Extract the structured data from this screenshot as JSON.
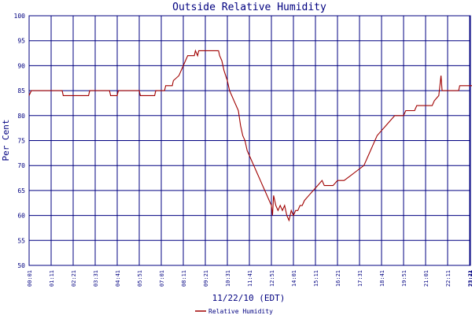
{
  "chart_data": {
    "type": "line",
    "title": "Outside Relative Humidity",
    "xlabel": "11/22/10 (EDT)",
    "ylabel": "Per Cent",
    "ylim": [
      50,
      100
    ],
    "yticks": [
      50,
      55,
      60,
      65,
      70,
      75,
      80,
      85,
      90,
      95,
      100
    ],
    "xticks": [
      "00:01",
      "01:11",
      "02:21",
      "03:31",
      "04:41",
      "05:51",
      "07:01",
      "08:11",
      "09:21",
      "10:31",
      "11:41",
      "12:51",
      "14:01",
      "15:11",
      "16:21",
      "17:31",
      "18:41",
      "19:51",
      "21:01",
      "22:11",
      "23:21",
      "23:44"
    ],
    "grid": true,
    "legend": "bottom-center",
    "colors": {
      "line": "#a00000",
      "grid": "#000080",
      "text": "#000080"
    },
    "series": [
      {
        "name": "Relative Humidity",
        "points": [
          [
            0,
            84
          ],
          [
            0.1,
            85
          ],
          [
            1.5,
            85
          ],
          [
            1.55,
            84
          ],
          [
            2.7,
            84
          ],
          [
            2.75,
            85
          ],
          [
            3.65,
            85
          ],
          [
            3.7,
            84
          ],
          [
            4.0,
            84
          ],
          [
            4.05,
            85
          ],
          [
            5.0,
            85
          ],
          [
            5.05,
            84
          ],
          [
            5.7,
            84
          ],
          [
            5.75,
            85
          ],
          [
            6.15,
            85
          ],
          [
            6.2,
            86
          ],
          [
            6.5,
            86
          ],
          [
            6.55,
            87
          ],
          [
            6.8,
            88
          ],
          [
            7.0,
            90
          ],
          [
            7.2,
            92
          ],
          [
            7.5,
            92
          ],
          [
            7.55,
            93
          ],
          [
            7.65,
            92
          ],
          [
            7.7,
            93
          ],
          [
            8.6,
            93
          ],
          [
            8.65,
            92
          ],
          [
            8.75,
            91
          ],
          [
            8.85,
            89
          ],
          [
            9.0,
            87
          ],
          [
            9.1,
            85
          ],
          [
            9.2,
            84
          ],
          [
            9.3,
            83
          ],
          [
            9.4,
            82
          ],
          [
            9.5,
            81
          ],
          [
            9.6,
            78
          ],
          [
            9.7,
            76
          ],
          [
            9.8,
            75
          ],
          [
            9.9,
            73
          ],
          [
            10.0,
            72
          ],
          [
            10.1,
            71
          ],
          [
            10.2,
            70
          ],
          [
            10.3,
            69
          ],
          [
            10.4,
            68
          ],
          [
            10.5,
            67
          ],
          [
            10.6,
            66
          ],
          [
            10.7,
            65
          ],
          [
            10.8,
            64
          ],
          [
            10.9,
            63
          ],
          [
            11.0,
            62
          ],
          [
            11.05,
            60
          ],
          [
            11.1,
            64
          ],
          [
            11.2,
            62
          ],
          [
            11.3,
            61
          ],
          [
            11.4,
            62
          ],
          [
            11.5,
            61
          ],
          [
            11.6,
            62
          ],
          [
            11.7,
            60
          ],
          [
            11.8,
            59
          ],
          [
            11.9,
            61
          ],
          [
            12.0,
            60
          ],
          [
            12.1,
            61
          ],
          [
            12.2,
            61
          ],
          [
            12.3,
            62
          ],
          [
            12.4,
            62
          ],
          [
            12.5,
            63
          ],
          [
            12.7,
            64
          ],
          [
            12.9,
            65
          ],
          [
            13.1,
            66
          ],
          [
            13.3,
            67
          ],
          [
            13.4,
            66
          ],
          [
            13.6,
            66
          ],
          [
            13.8,
            66
          ],
          [
            14.0,
            67
          ],
          [
            14.3,
            67
          ],
          [
            14.6,
            68
          ],
          [
            14.9,
            69
          ],
          [
            15.2,
            70
          ],
          [
            15.4,
            72
          ],
          [
            15.6,
            74
          ],
          [
            15.8,
            76
          ],
          [
            16.0,
            77
          ],
          [
            16.2,
            78
          ],
          [
            16.4,
            79
          ],
          [
            16.6,
            80
          ],
          [
            17.0,
            80
          ],
          [
            17.1,
            81
          ],
          [
            17.5,
            81
          ],
          [
            17.6,
            82
          ],
          [
            18.3,
            82
          ],
          [
            18.4,
            83
          ],
          [
            18.6,
            84
          ],
          [
            18.7,
            88
          ],
          [
            18.75,
            85
          ],
          [
            19.5,
            85
          ],
          [
            19.55,
            86
          ],
          [
            20.2,
            86
          ],
          [
            20.25,
            87
          ],
          [
            21.0,
            87
          ]
        ]
      }
    ]
  }
}
